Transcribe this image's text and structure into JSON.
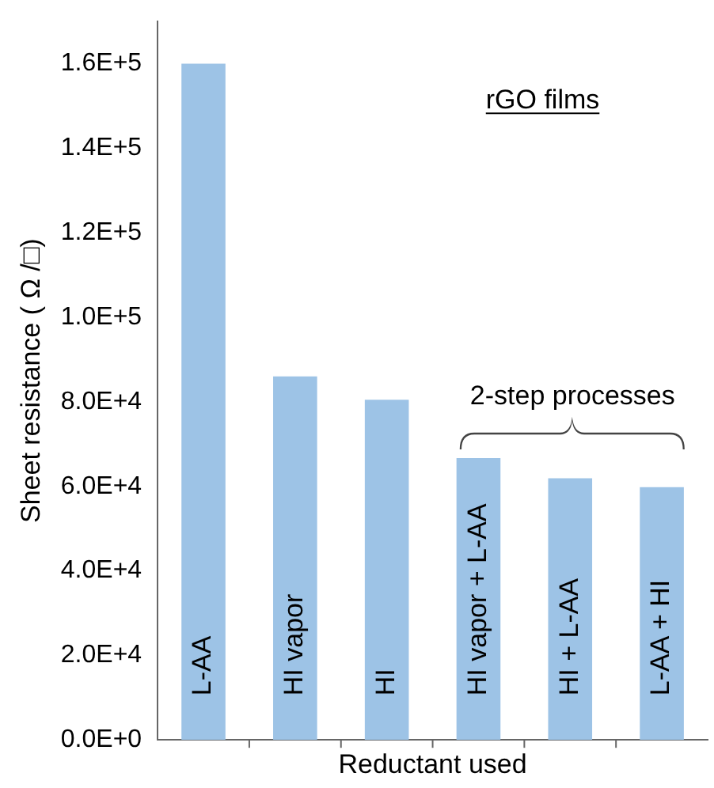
{
  "chart_data": {
    "type": "bar",
    "xlabel": "Reductant used",
    "ylabel": "Sheet resistance ( Ω /□)",
    "categories": [
      "L-AA",
      "HI vapor",
      "HI",
      "HI vapor + L-AA",
      "HI + L-AA",
      "L-AA + HI"
    ],
    "values": [
      160000,
      86000,
      80500,
      66700,
      61900,
      59800
    ],
    "color": "#9dc3e6",
    "ylim": [
      0,
      170000
    ],
    "yticks": [
      {
        "value": 0,
        "label": "0.0E+0"
      },
      {
        "value": 20000,
        "label": "2.0E+4"
      },
      {
        "value": 40000,
        "label": "4.0E+4"
      },
      {
        "value": 60000,
        "label": "6.0E+4"
      },
      {
        "value": 80000,
        "label": "8.0E+4"
      },
      {
        "value": 100000,
        "label": "1.0E+5"
      },
      {
        "value": 120000,
        "label": "1.2E+5"
      },
      {
        "value": 140000,
        "label": "1.4E+5"
      },
      {
        "value": 160000,
        "label": "1.6E+5"
      }
    ],
    "annotations": [
      "rGO films",
      "2-step processes"
    ],
    "grid": false,
    "legend": false
  }
}
